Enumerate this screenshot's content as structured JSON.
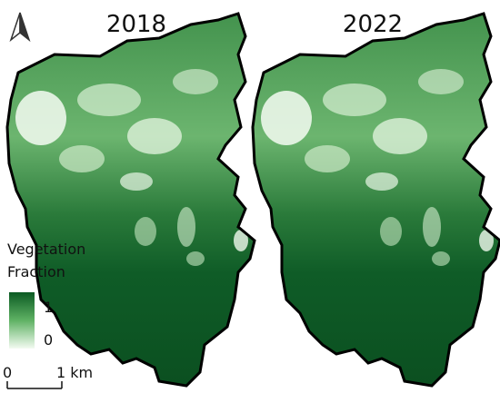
{
  "maps": [
    {
      "year": "2018"
    },
    {
      "year": "2022"
    }
  ],
  "legend": {
    "title": [
      "Vegetation",
      "Fraction"
    ],
    "max": 1,
    "min": 0
  },
  "scale_bar": {
    "start": 0,
    "end": "1 km"
  }
}
